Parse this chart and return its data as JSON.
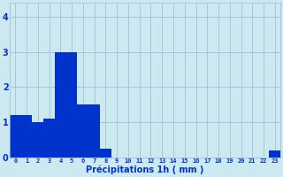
{
  "categories": [
    0,
    1,
    2,
    3,
    4,
    5,
    6,
    7,
    8,
    9,
    10,
    11,
    12,
    13,
    14,
    15,
    16,
    17,
    18,
    19,
    20,
    21,
    22,
    23
  ],
  "values": [
    1.2,
    1.2,
    1.0,
    1.1,
    3.0,
    3.0,
    1.5,
    1.5,
    0.25,
    0.0,
    0.0,
    0.0,
    0.0,
    0.0,
    0.0,
    0.0,
    0.0,
    0.0,
    0.0,
    0.0,
    0.0,
    0.0,
    0.0,
    0.2
  ],
  "bar_color": "#0033cc",
  "bg_color": "#cce8f0",
  "grid_color": "#a0b8c8",
  "xlabel": "Précipitations 1h ( mm )",
  "xlabel_color": "#0033cc",
  "tick_color": "#0033cc",
  "ylim": [
    0,
    4.4
  ],
  "yticks": [
    0,
    1,
    2,
    3,
    4
  ],
  "figwidth": 3.2,
  "figheight": 2.0,
  "dpi": 100
}
